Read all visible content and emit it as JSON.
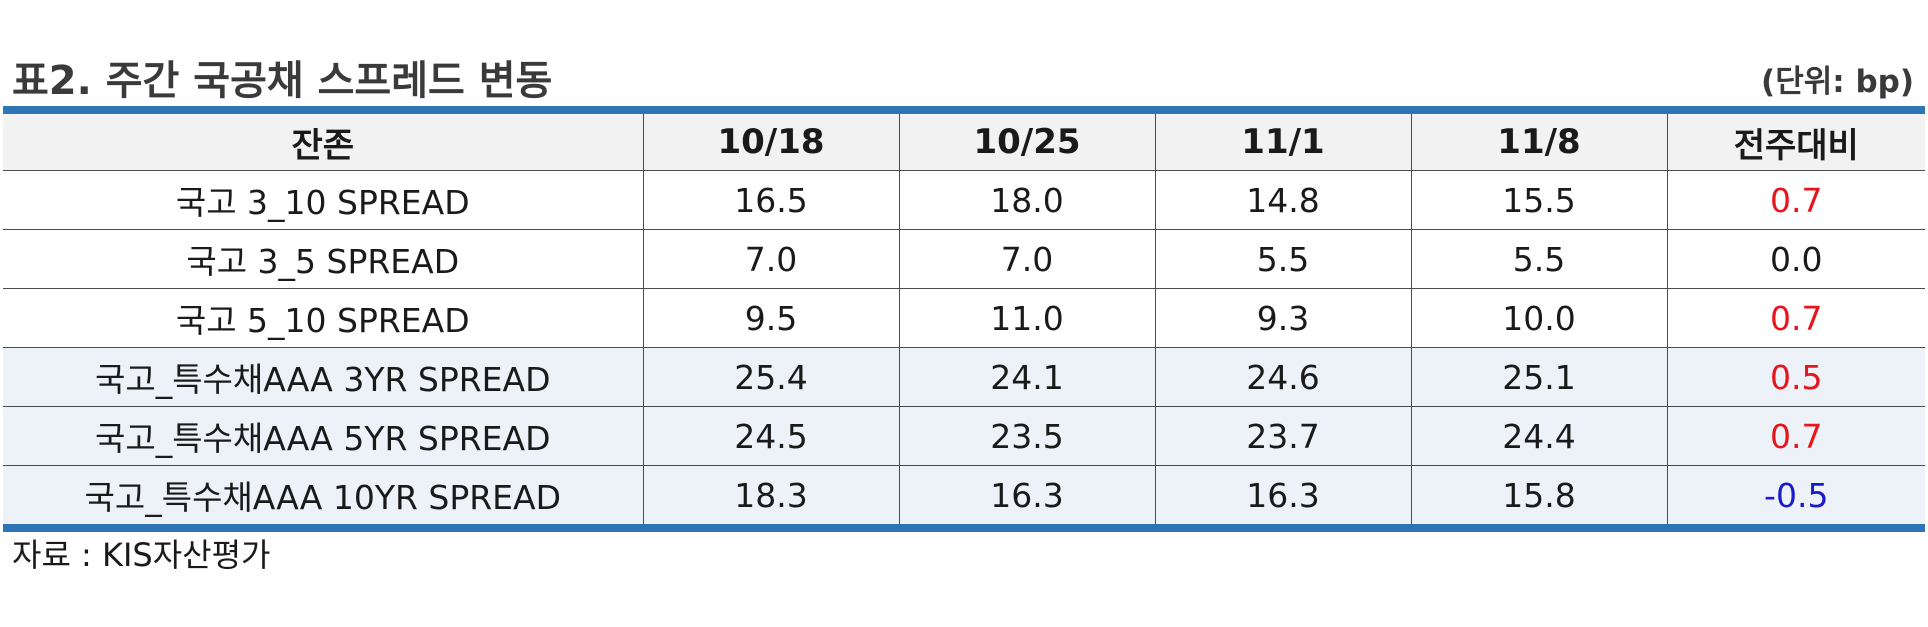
{
  "title": "표2. 주간 국공채 스프레드 변동",
  "unit": "(단위: bp)",
  "table": {
    "headers": [
      "잔존",
      "10/18",
      "10/25",
      "11/1",
      "11/8",
      "전주대비"
    ],
    "rows": [
      {
        "label": "국고 3_10 SPREAD",
        "values": [
          "16.5",
          "18.0",
          "14.8",
          "15.5"
        ],
        "change": "0.7",
        "change_sign": "pos",
        "shaded": false
      },
      {
        "label": "국고 3_5 SPREAD",
        "values": [
          "7.0",
          "7.0",
          "5.5",
          "5.5"
        ],
        "change": "0.0",
        "change_sign": "zero",
        "shaded": false
      },
      {
        "label": "국고 5_10 SPREAD",
        "values": [
          "9.5",
          "11.0",
          "9.3",
          "10.0"
        ],
        "change": "0.7",
        "change_sign": "pos",
        "shaded": false
      },
      {
        "label": "국고_특수채AAA 3YR SPREAD",
        "values": [
          "25.4",
          "24.1",
          "24.6",
          "25.1"
        ],
        "change": "0.5",
        "change_sign": "pos",
        "shaded": true
      },
      {
        "label": "국고_특수채AAA 5YR SPREAD",
        "values": [
          "24.5",
          "23.5",
          "23.7",
          "24.4"
        ],
        "change": "0.7",
        "change_sign": "pos",
        "shaded": true
      },
      {
        "label": "국고_특수채AAA 10YR SPREAD",
        "values": [
          "18.3",
          "16.3",
          "16.3",
          "15.8"
        ],
        "change": "-0.5",
        "change_sign": "neg",
        "shaded": true
      }
    ]
  },
  "source": "자료 : KIS자산평가",
  "colors": {
    "rule": "#2e75b6",
    "positive": "#e8141b",
    "negative": "#1a1acc",
    "header_bg": "#f2f2f2",
    "shaded_bg": "#edf2f9"
  }
}
